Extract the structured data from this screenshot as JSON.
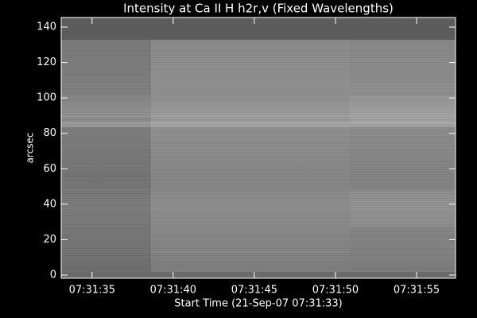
{
  "chart_data": {
    "type": "image",
    "title": "Intensity at Ca II H h2r,v (Fixed Wavelengths)",
    "x_label": "Start Time (21-Sep-07 07:31:33)",
    "y_label": "arcsec",
    "xlim": [
      33.1,
      57.4
    ],
    "xticks": [
      {
        "value": 35,
        "label": "07:31:35"
      },
      {
        "value": 40,
        "label": "07:31:40"
      },
      {
        "value": 45,
        "label": "07:31:45"
      },
      {
        "value": 50,
        "label": "07:31:50"
      },
      {
        "value": 55,
        "label": "07:31:55"
      }
    ],
    "ylim": [
      -1.8,
      145.4
    ],
    "yticks": [
      0,
      20,
      40,
      60,
      80,
      100,
      120,
      140
    ]
  }
}
